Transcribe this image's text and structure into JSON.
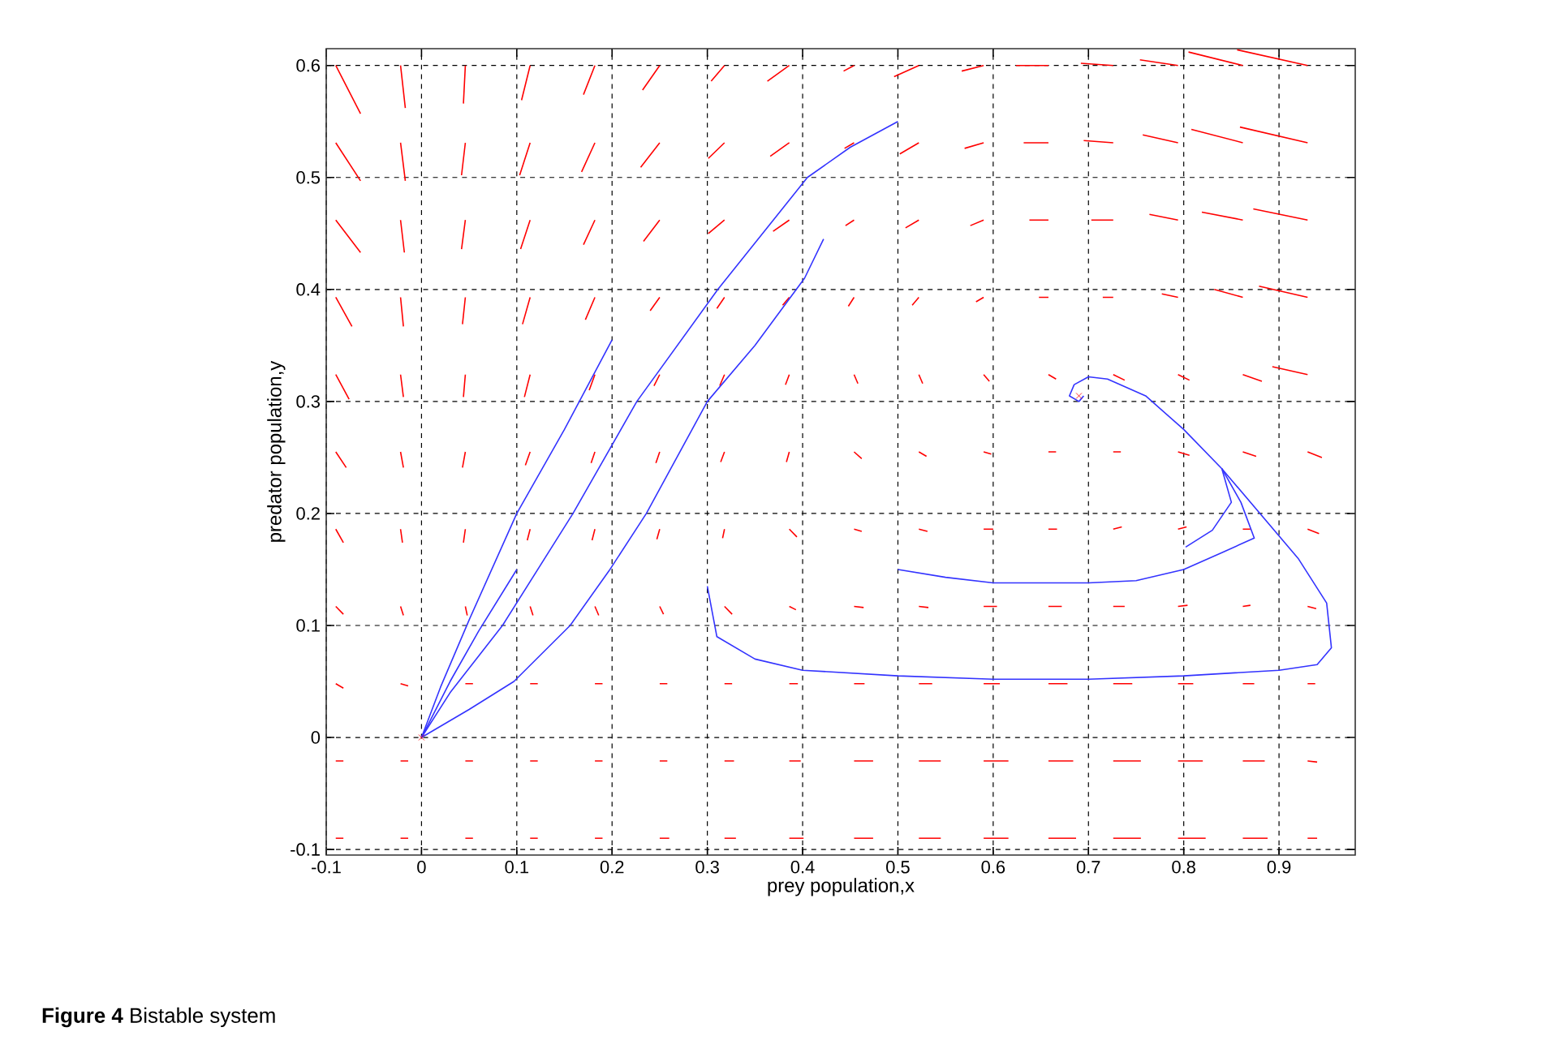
{
  "chart_data": {
    "type": "line",
    "xlabel": "prey population,x",
    "ylabel": "predator population,y",
    "xlim": [
      -0.1,
      0.98
    ],
    "ylim": [
      -0.105,
      0.615
    ],
    "xticks": [
      -0.1,
      0,
      0.1,
      0.2,
      0.3,
      0.4,
      0.5,
      0.6,
      0.7,
      0.8,
      0.9
    ],
    "yticks": [
      -0.1,
      0,
      0.1,
      0.2,
      0.3,
      0.4,
      0.5,
      0.6
    ],
    "grid": true,
    "annotations": [
      "**Figure 4** Bistable system"
    ],
    "series": [
      {
        "color": "#ff0000",
        "x": [
          -0.09,
          -0.064,
          null,
          -0.022,
          -0.017,
          null,
          0.046,
          0.044,
          null,
          0.114,
          0.105,
          null,
          0.182,
          0.17,
          null,
          0.25,
          0.232,
          null,
          0.318,
          0.304,
          null,
          0.386,
          0.363,
          null,
          0.454,
          0.443,
          null,
          0.522,
          0.496,
          null,
          0.59,
          0.567,
          null,
          0.658,
          0.624,
          null,
          0.726,
          0.692,
          null,
          0.794,
          0.754,
          null,
          0.862,
          0.805,
          null,
          0.93,
          0.856
        ],
        "values": [
          0.6,
          0.557,
          null,
          0.6,
          0.562,
          null,
          0.6,
          0.566,
          null,
          0.6,
          0.569,
          null,
          0.6,
          0.574,
          null,
          0.6,
          0.578,
          null,
          0.6,
          0.586,
          null,
          0.6,
          0.586,
          null,
          0.6,
          0.595,
          null,
          0.6,
          0.59,
          null,
          0.6,
          0.595,
          null,
          0.6,
          0.6,
          null,
          0.6,
          0.602,
          null,
          0.6,
          0.605,
          null,
          0.6,
          0.612,
          null,
          0.6,
          0.614
        ]
      },
      {
        "color": "#ff0000",
        "x": [
          -0.09,
          -0.064,
          null,
          -0.022,
          -0.017,
          null,
          0.046,
          0.042,
          null,
          0.114,
          0.103,
          null,
          0.182,
          0.168,
          null,
          0.25,
          0.23,
          null,
          0.318,
          0.301,
          null,
          0.386,
          0.366,
          null,
          0.454,
          0.444,
          null,
          0.522,
          0.502,
          null,
          0.59,
          0.57,
          null,
          0.658,
          0.632,
          null,
          0.726,
          0.695,
          null,
          0.794,
          0.757,
          null,
          0.862,
          0.808,
          null,
          0.93,
          0.859
        ],
        "values": [
          0.531,
          0.497,
          null,
          0.531,
          0.497,
          null,
          0.531,
          0.502,
          null,
          0.531,
          0.502,
          null,
          0.531,
          0.505,
          null,
          0.531,
          0.509,
          null,
          0.531,
          0.517,
          null,
          0.531,
          0.519,
          null,
          0.531,
          0.526,
          null,
          0.531,
          0.521,
          null,
          0.531,
          0.526,
          null,
          0.531,
          0.531,
          null,
          0.531,
          0.533,
          null,
          0.531,
          0.538,
          null,
          0.531,
          0.543,
          null,
          0.531,
          0.545
        ]
      },
      {
        "color": "#ff0000",
        "x": [
          -0.09,
          -0.064,
          null,
          -0.022,
          -0.018,
          null,
          0.046,
          0.042,
          null,
          0.114,
          0.104,
          null,
          0.182,
          0.17,
          null,
          0.25,
          0.233,
          null,
          0.318,
          0.301,
          null,
          0.386,
          0.369,
          null,
          0.454,
          0.445,
          null,
          0.522,
          0.508,
          null,
          0.59,
          0.576,
          null,
          0.658,
          0.638,
          null,
          0.726,
          0.703,
          null,
          0.794,
          0.764,
          null,
          0.862,
          0.819,
          null,
          0.93,
          0.873
        ],
        "values": [
          0.462,
          0.433,
          null,
          0.462,
          0.433,
          null,
          0.462,
          0.436,
          null,
          0.462,
          0.436,
          null,
          0.462,
          0.44,
          null,
          0.462,
          0.443,
          null,
          0.462,
          0.45,
          null,
          0.462,
          0.452,
          null,
          0.462,
          0.457,
          null,
          0.462,
          0.455,
          null,
          0.462,
          0.457,
          null,
          0.462,
          0.462,
          null,
          0.462,
          0.462,
          null,
          0.462,
          0.467,
          null,
          0.462,
          0.469,
          null,
          0.462,
          0.472
        ]
      },
      {
        "color": "#ff0000",
        "x": [
          -0.09,
          -0.073,
          null,
          -0.022,
          -0.019,
          null,
          0.046,
          0.043,
          null,
          0.114,
          0.106,
          null,
          0.182,
          0.172,
          null,
          0.25,
          0.24,
          null,
          0.318,
          0.31,
          null,
          0.386,
          0.379,
          null,
          0.454,
          0.448,
          null,
          0.522,
          0.515,
          null,
          0.59,
          0.582,
          null,
          0.658,
          0.648,
          null,
          0.726,
          0.715,
          null,
          0.794,
          0.777,
          null,
          0.862,
          0.832,
          null,
          0.93,
          0.879
        ],
        "values": [
          0.393,
          0.367,
          null,
          0.393,
          0.367,
          null,
          0.393,
          0.369,
          null,
          0.393,
          0.369,
          null,
          0.393,
          0.373,
          null,
          0.393,
          0.381,
          null,
          0.393,
          0.383,
          null,
          0.393,
          0.386,
          null,
          0.393,
          0.385,
          null,
          0.393,
          0.386,
          null,
          0.393,
          0.389,
          null,
          0.393,
          0.393,
          null,
          0.393,
          0.393,
          null,
          0.393,
          0.396,
          null,
          0.393,
          0.4,
          null,
          0.393,
          0.403
        ]
      },
      {
        "color": "#ff0000",
        "x": [
          -0.09,
          -0.076,
          null,
          -0.022,
          -0.019,
          null,
          0.046,
          0.044,
          null,
          0.114,
          0.108,
          null,
          0.182,
          0.176,
          null,
          0.25,
          0.244,
          null,
          0.318,
          0.313,
          null,
          0.386,
          0.382,
          null,
          0.454,
          0.458,
          null,
          0.522,
          0.526,
          null,
          0.59,
          0.596,
          null,
          0.658,
          0.666,
          null,
          0.726,
          0.738,
          null,
          0.794,
          0.806,
          null,
          0.862,
          0.882,
          null,
          0.93,
          0.893
        ],
        "values": [
          0.324,
          0.302,
          null,
          0.324,
          0.304,
          null,
          0.324,
          0.304,
          null,
          0.324,
          0.304,
          null,
          0.324,
          0.31,
          null,
          0.324,
          0.314,
          null,
          0.324,
          0.314,
          null,
          0.324,
          0.315,
          null,
          0.324,
          0.316,
          null,
          0.324,
          0.316,
          null,
          0.324,
          0.318,
          null,
          0.324,
          0.32,
          null,
          0.324,
          0.319,
          null,
          0.324,
          0.319,
          null,
          0.324,
          0.318,
          null,
          0.324,
          0.331
        ]
      },
      {
        "color": "#ff0000",
        "x": [
          -0.09,
          -0.079,
          null,
          -0.022,
          -0.019,
          null,
          0.046,
          0.043,
          null,
          0.114,
          0.109,
          null,
          0.182,
          0.178,
          null,
          0.25,
          0.246,
          null,
          0.318,
          0.314,
          null,
          0.386,
          0.383,
          null,
          0.454,
          0.462,
          null,
          0.522,
          0.53,
          null,
          0.59,
          0.598,
          null,
          0.658,
          0.666,
          null,
          0.726,
          0.734,
          null,
          0.794,
          0.806,
          null,
          0.862,
          0.876,
          null,
          0.93,
          0.945
        ],
        "values": [
          0.255,
          0.241,
          null,
          0.255,
          0.241,
          null,
          0.255,
          0.241,
          null,
          0.255,
          0.243,
          null,
          0.255,
          0.245,
          null,
          0.255,
          0.245,
          null,
          0.255,
          0.246,
          null,
          0.255,
          0.246,
          null,
          0.255,
          0.249,
          null,
          0.255,
          0.251,
          null,
          0.255,
          0.253,
          null,
          0.255,
          0.255,
          null,
          0.255,
          0.255,
          null,
          0.255,
          0.252,
          null,
          0.255,
          0.251,
          null,
          0.255,
          0.25
        ]
      },
      {
        "color": "#ff0000",
        "x": [
          -0.09,
          -0.082,
          null,
          -0.022,
          -0.02,
          null,
          0.046,
          0.044,
          null,
          0.114,
          0.111,
          null,
          0.182,
          0.179,
          null,
          0.25,
          0.247,
          null,
          0.318,
          0.316,
          null,
          0.386,
          0.394,
          null,
          0.454,
          0.462,
          null,
          0.522,
          0.531,
          null,
          0.59,
          0.6,
          null,
          0.658,
          0.667,
          null,
          0.726,
          0.735,
          null,
          0.794,
          0.803,
          null,
          0.862,
          0.87,
          null,
          0.93,
          0.942
        ],
        "values": [
          0.186,
          0.174,
          null,
          0.186,
          0.174,
          null,
          0.186,
          0.174,
          null,
          0.186,
          0.176,
          null,
          0.186,
          0.176,
          null,
          0.186,
          0.177,
          null,
          0.186,
          0.178,
          null,
          0.186,
          0.179,
          null,
          0.186,
          0.184,
          null,
          0.186,
          0.184,
          null,
          0.186,
          0.186,
          null,
          0.186,
          0.186,
          null,
          0.186,
          0.188,
          null,
          0.186,
          0.188,
          null,
          0.186,
          0.186,
          null,
          0.186,
          0.182
        ]
      },
      {
        "color": "#ff0000",
        "x": [
          -0.09,
          -0.082,
          null,
          -0.022,
          -0.019,
          null,
          0.046,
          0.048,
          null,
          0.114,
          0.117,
          null,
          0.182,
          0.186,
          null,
          0.25,
          0.254,
          null,
          0.318,
          0.326,
          null,
          0.386,
          0.393,
          null,
          0.454,
          0.464,
          null,
          0.522,
          0.532,
          null,
          0.59,
          0.604,
          null,
          0.658,
          0.672,
          null,
          0.726,
          0.738,
          null,
          0.794,
          0.804,
          null,
          0.862,
          0.87,
          null,
          0.93,
          0.939
        ],
        "values": [
          0.117,
          0.11,
          null,
          0.117,
          0.109,
          null,
          0.117,
          0.109,
          null,
          0.117,
          0.109,
          null,
          0.117,
          0.109,
          null,
          0.117,
          0.11,
          null,
          0.117,
          0.11,
          null,
          0.117,
          0.114,
          null,
          0.117,
          0.116,
          null,
          0.117,
          0.116,
          null,
          0.117,
          0.117,
          null,
          0.117,
          0.117,
          null,
          0.117,
          0.117,
          null,
          0.117,
          0.118,
          null,
          0.117,
          0.118,
          null,
          0.117,
          0.115
        ]
      },
      {
        "color": "#ff0000",
        "x": [
          -0.09,
          -0.082,
          null,
          -0.022,
          -0.014,
          null,
          0.046,
          0.054,
          null,
          0.114,
          0.122,
          null,
          0.182,
          0.19,
          null,
          0.25,
          0.258,
          null,
          0.318,
          0.326,
          null,
          0.386,
          0.395,
          null,
          0.454,
          0.465,
          null,
          0.522,
          0.536,
          null,
          0.59,
          0.607,
          null,
          0.658,
          0.678,
          null,
          0.726,
          0.746,
          null,
          0.794,
          0.81,
          null,
          0.862,
          0.874,
          null,
          0.93,
          0.938
        ],
        "values": [
          0.048,
          0.044,
          null,
          0.048,
          0.046,
          null,
          0.048,
          0.048,
          null,
          0.048,
          0.048,
          null,
          0.048,
          0.048,
          null,
          0.048,
          0.048,
          null,
          0.048,
          0.048,
          null,
          0.048,
          0.048,
          null,
          0.048,
          0.048,
          null,
          0.048,
          0.048,
          null,
          0.048,
          0.048,
          null,
          0.048,
          0.048,
          null,
          0.048,
          0.048,
          null,
          0.048,
          0.048,
          null,
          0.048,
          0.048,
          null,
          0.048,
          0.048
        ]
      },
      {
        "color": "#ff0000",
        "x": [
          -0.09,
          -0.082,
          null,
          -0.022,
          -0.014,
          null,
          0.046,
          0.054,
          null,
          0.114,
          0.122,
          null,
          0.182,
          0.19,
          null,
          0.25,
          0.258,
          null,
          0.318,
          0.328,
          null,
          0.386,
          0.398,
          null,
          0.454,
          0.474,
          null,
          0.522,
          0.545,
          null,
          0.59,
          0.616,
          null,
          0.658,
          0.684,
          null,
          0.726,
          0.755,
          null,
          0.794,
          0.82,
          null,
          0.862,
          0.885,
          null,
          0.93,
          0.94
        ],
        "values": [
          -0.021,
          -0.021,
          null,
          -0.021,
          -0.021,
          null,
          -0.021,
          -0.021,
          null,
          -0.021,
          -0.021,
          null,
          -0.021,
          -0.021,
          null,
          -0.021,
          -0.021,
          null,
          -0.021,
          -0.021,
          null,
          -0.021,
          -0.021,
          null,
          -0.021,
          -0.021,
          null,
          -0.021,
          -0.021,
          null,
          -0.021,
          -0.021,
          null,
          -0.021,
          -0.021,
          null,
          -0.021,
          -0.021,
          null,
          -0.021,
          -0.021,
          null,
          -0.021,
          -0.021,
          null,
          -0.021,
          -0.022
        ]
      },
      {
        "color": "#ff0000",
        "x": [
          -0.09,
          -0.082,
          null,
          -0.022,
          -0.014,
          null,
          0.046,
          0.054,
          null,
          0.114,
          0.122,
          null,
          0.182,
          0.19,
          null,
          0.25,
          0.26,
          null,
          0.318,
          0.33,
          null,
          0.386,
          0.401,
          null,
          0.454,
          0.474,
          null,
          0.522,
          0.545,
          null,
          0.59,
          0.616,
          null,
          0.658,
          0.687,
          null,
          0.726,
          0.755,
          null,
          0.794,
          0.823,
          null,
          0.862,
          0.888,
          null,
          0.93,
          0.94
        ],
        "values": [
          -0.09,
          -0.09,
          null,
          -0.09,
          -0.09,
          null,
          -0.09,
          -0.09,
          null,
          -0.09,
          -0.09,
          null,
          -0.09,
          -0.09,
          null,
          -0.09,
          -0.09,
          null,
          -0.09,
          -0.09,
          null,
          -0.09,
          -0.09,
          null,
          -0.09,
          -0.09,
          null,
          -0.09,
          -0.09,
          null,
          -0.09,
          -0.09,
          null,
          -0.09,
          -0.09,
          null,
          -0.09,
          -0.09,
          null,
          -0.09,
          -0.09,
          null,
          -0.09,
          -0.09,
          null,
          -0.09,
          -0.09
        ]
      },
      {
        "color": "#3333ff",
        "x": [
          0.2,
          0.15,
          0.1,
          0.05,
          0.02,
          0
        ],
        "values": [
          0.355,
          0.275,
          0.2,
          0.105,
          0.045,
          0
        ]
      },
      {
        "color": "#3333ff",
        "x": [
          0.1,
          0.06,
          0.03,
          0
        ],
        "values": [
          0.15,
          0.095,
          0.05,
          0
        ]
      },
      {
        "color": "#3333ff",
        "x": [
          0.5,
          0.45,
          0.405,
          0.311,
          0.226,
          0.159,
          0.085,
          0.03,
          0
        ],
        "values": [
          0.55,
          0.527,
          0.5,
          0.4,
          0.3,
          0.2,
          0.1,
          0.04,
          0
        ]
      },
      {
        "color": "#3333ff",
        "x": [
          0.422,
          0.402,
          0.35,
          0.3,
          0.236,
          0.197,
          0.156,
          0.097,
          0.05,
          0
        ],
        "values": [
          0.445,
          0.41,
          0.35,
          0.3,
          0.2,
          0.149,
          0.1,
          0.05,
          0.025,
          0
        ]
      },
      {
        "color": "#3333ff",
        "x": [
          0.3,
          0.31,
          0.35,
          0.4,
          0.5,
          0.6,
          0.7,
          0.8,
          0.9,
          0.94,
          0.955,
          0.95,
          0.92,
          0.88,
          0.84,
          0.8,
          0.76,
          0.72,
          0.7,
          0.685,
          0.68,
          0.69,
          0.695
        ],
        "values": [
          0.135,
          0.09,
          0.07,
          0.06,
          0.055,
          0.052,
          0.052,
          0.055,
          0.06,
          0.065,
          0.08,
          0.12,
          0.16,
          0.2,
          0.24,
          0.275,
          0.305,
          0.32,
          0.322,
          0.315,
          0.305,
          0.3,
          0.305
        ]
      },
      {
        "color": "#3333ff",
        "x": [
          0.5,
          0.55,
          0.6,
          0.7,
          0.75,
          0.8,
          0.84,
          0.874,
          0.86,
          0.84
        ],
        "values": [
          0.15,
          0.143,
          0.138,
          0.138,
          0.14,
          0.15,
          0.165,
          0.178,
          0.21,
          0.24
        ]
      },
      {
        "color": "#3333ff",
        "x": [
          0.802,
          0.83,
          0.85,
          0.84
        ],
        "values": [
          0.17,
          0.185,
          0.21,
          0.24
        ]
      },
      {
        "type": "scatter",
        "marker": "cross",
        "color": "#ff0000",
        "x": [
          0,
          0.69
        ],
        "values": [
          0,
          0.305
        ]
      }
    ]
  }
}
